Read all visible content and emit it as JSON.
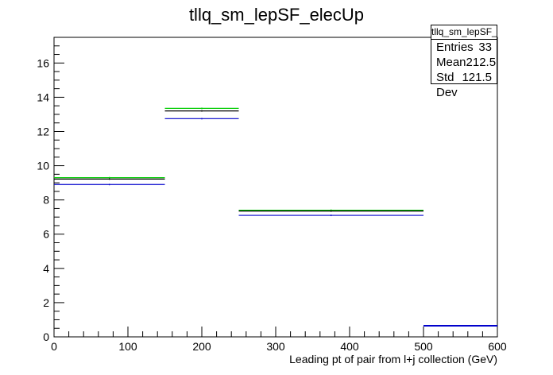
{
  "chart_data": {
    "type": "histogram",
    "title": "tllq_sm_lepSF_elecUp",
    "xlabel": "Leading pt of pair from l+j collection (GeV)",
    "ylabel": "",
    "xlim": [
      0,
      600
    ],
    "ylim": [
      0,
      17.5
    ],
    "x_ticks": [
      0,
      100,
      200,
      300,
      400,
      500,
      600
    ],
    "y_ticks": [
      0,
      2,
      4,
      6,
      8,
      10,
      12,
      14,
      16
    ],
    "bin_edges": [
      0,
      150,
      250,
      500,
      600
    ],
    "series": [
      {
        "color": "#00cc00",
        "values": [
          9.3,
          13.35,
          7.4,
          0.65
        ]
      },
      {
        "color": "#000000",
        "values": [
          9.22,
          13.2,
          7.35,
          0.65
        ]
      },
      {
        "color": "#0000cc",
        "values": [
          8.9,
          12.75,
          7.1,
          0.65
        ]
      }
    ],
    "grid": false
  },
  "stats": {
    "name": "tllq_sm_lepSF_elecUp",
    "rows": [
      {
        "label": "Entries",
        "value": "33"
      },
      {
        "label": "Mean",
        "value": "212.5"
      },
      {
        "label": "Std Dev",
        "value": "121.5"
      }
    ]
  }
}
